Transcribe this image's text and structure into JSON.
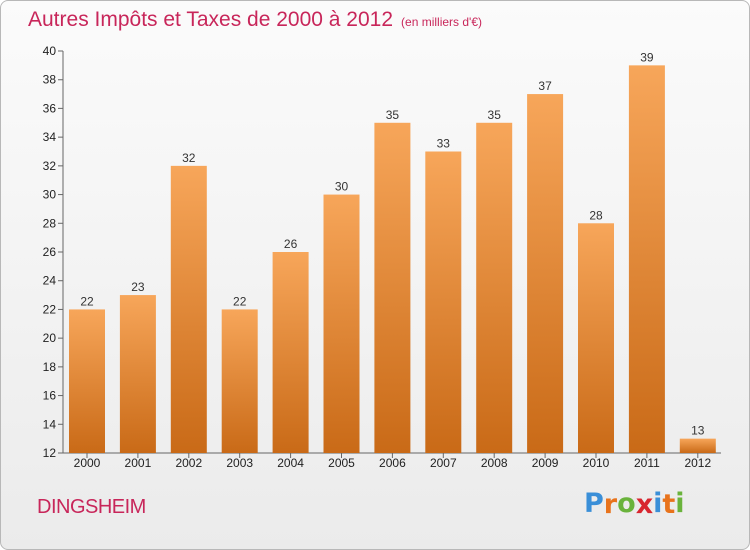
{
  "title": "Autres Impôts et Taxes de 2000 à 2012",
  "subtitle": "(en milliers d'€)",
  "city": "DINGSHEIM",
  "logo": {
    "letters": [
      "P",
      "r",
      "o",
      "x",
      "i",
      "t",
      "i"
    ],
    "colors": [
      "#3a8fd8",
      "#e8731c",
      "#6ab33c",
      "#d8262f",
      "#3a8fd8",
      "#e8731c",
      "#6ab33c"
    ]
  },
  "chart_data": {
    "type": "bar",
    "categories": [
      "2000",
      "2001",
      "2002",
      "2003",
      "2004",
      "2005",
      "2006",
      "2007",
      "2008",
      "2009",
      "2010",
      "2011",
      "2012"
    ],
    "values": [
      22,
      23,
      32,
      22,
      26,
      30,
      35,
      33,
      35,
      37,
      28,
      39,
      13
    ],
    "ylim": [
      12,
      40
    ],
    "yticks": [
      12,
      14,
      16,
      18,
      20,
      22,
      24,
      26,
      28,
      30,
      32,
      34,
      36,
      38,
      40
    ],
    "grid": false,
    "bar_color": "#f0913a"
  }
}
